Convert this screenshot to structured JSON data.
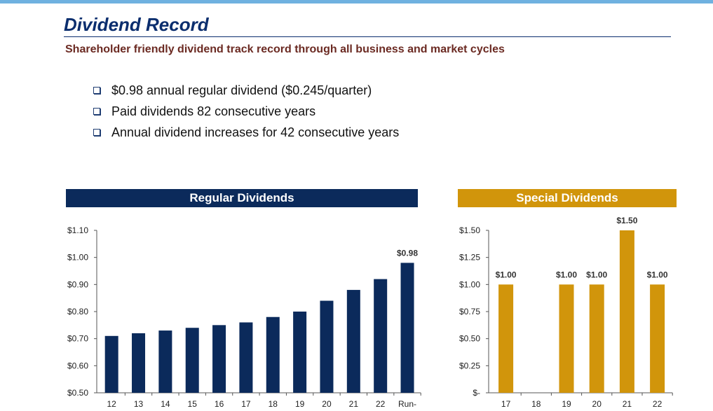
{
  "page": {
    "title": "Dividend Record",
    "subtitle": "Shareholder friendly dividend track record through all business and market cycles",
    "bullets": [
      "$0.98 annual regular dividend ($0.245/quarter)",
      "Paid dividends 82 consecutive years",
      "Annual dividend increases for 42 consecutive years"
    ],
    "colors": {
      "title": "#0b2e6e",
      "subtitle": "#6b2a22",
      "regular_bar": "#0b2a5b",
      "special_bar": "#d1950b",
      "top_rule": "#6fb1e0"
    }
  },
  "chart_data": [
    {
      "type": "bar",
      "title": "Regular Dividends",
      "categories": [
        "12",
        "13",
        "14",
        "15",
        "16",
        "17",
        "18",
        "19",
        "20",
        "21",
        "22",
        "Run-"
      ],
      "values": [
        0.71,
        0.72,
        0.73,
        0.74,
        0.75,
        0.76,
        0.78,
        0.8,
        0.84,
        0.88,
        0.92,
        0.98
      ],
      "data_labels": [
        "",
        "",
        "",
        "",
        "",
        "",
        "",
        "",
        "",
        "",
        "",
        "$0.98"
      ],
      "ylim": [
        0.5,
        1.1
      ],
      "yticks": [
        {
          "value": 1.1,
          "label": "$1.10"
        },
        {
          "value": 1.0,
          "label": "$1.00"
        },
        {
          "value": 0.9,
          "label": "$0.90"
        },
        {
          "value": 0.8,
          "label": "$0.80"
        },
        {
          "value": 0.7,
          "label": "$0.70"
        },
        {
          "value": 0.6,
          "label": "$0.60"
        },
        {
          "value": 0.5,
          "label": "$0.50"
        }
      ],
      "color": "#0b2a5b"
    },
    {
      "type": "bar",
      "title": "Special Dividends",
      "categories": [
        "17",
        "18",
        "19",
        "20",
        "21",
        "22"
      ],
      "values": [
        1.0,
        0,
        1.0,
        1.0,
        1.5,
        1.0
      ],
      "data_labels": [
        "$1.00",
        "",
        "$1.00",
        "$1.00",
        "$1.50",
        "$1.00"
      ],
      "ylim": [
        0,
        1.5
      ],
      "yticks": [
        {
          "value": 1.5,
          "label": "$1.50"
        },
        {
          "value": 1.25,
          "label": "$1.25"
        },
        {
          "value": 1.0,
          "label": "$1.00"
        },
        {
          "value": 0.75,
          "label": "$0.75"
        },
        {
          "value": 0.5,
          "label": "$0.50"
        },
        {
          "value": 0.25,
          "label": "$0.25"
        },
        {
          "value": 0,
          "label": "$-"
        }
      ],
      "color": "#d1950b"
    }
  ]
}
